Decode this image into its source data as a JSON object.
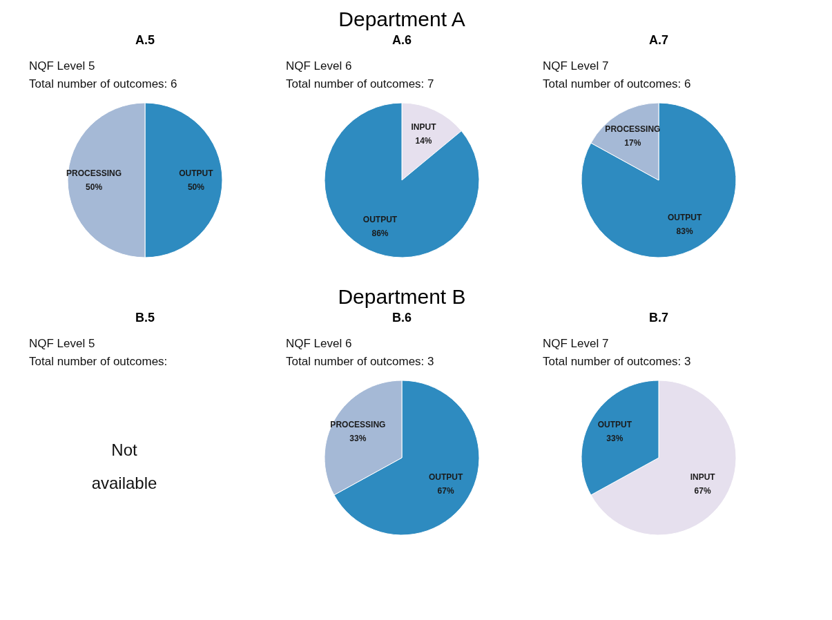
{
  "chart_data": [
    {
      "type": "pie",
      "title": "A.5",
      "annotations": [
        "Department A",
        "NQF Level 5",
        "Total number of outcomes: 6"
      ],
      "categories": [
        "OUTPUT",
        "PROCESSING"
      ],
      "values": [
        50,
        50
      ],
      "value_labels": [
        "50%",
        "50%"
      ],
      "colors": [
        "#2e8bc0",
        "#a5b9d6"
      ]
    },
    {
      "type": "pie",
      "title": "A.6",
      "annotations": [
        "NQF Level 6",
        "Total number of outcomes: 7"
      ],
      "categories": [
        "INPUT",
        "OUTPUT"
      ],
      "values": [
        14,
        86
      ],
      "value_labels": [
        "14%",
        "86%"
      ],
      "colors": [
        "#e6e0ee",
        "#2e8bc0"
      ]
    },
    {
      "type": "pie",
      "title": "A.7",
      "annotations": [
        "NQF Level 7",
        "Total number of outcomes: 6"
      ],
      "categories": [
        "OUTPUT",
        "PROCESSING"
      ],
      "values": [
        83,
        17
      ],
      "value_labels": [
        "83%",
        "17%"
      ],
      "colors": [
        "#2e8bc0",
        "#a5b9d6"
      ]
    },
    {
      "type": "other",
      "title": "B.5",
      "annotations": [
        "Department B",
        "NQF Level 5",
        "Total number of outcomes:",
        "Not available"
      ]
    },
    {
      "type": "pie",
      "title": "B.6",
      "annotations": [
        "NQF Level 6",
        "Total number of outcomes: 3"
      ],
      "categories": [
        "OUTPUT",
        "PROCESSING"
      ],
      "values": [
        67,
        33
      ],
      "value_labels": [
        "67%",
        "33%"
      ],
      "colors": [
        "#2e8bc0",
        "#a5b9d6"
      ]
    },
    {
      "type": "pie",
      "title": "B.7",
      "annotations": [
        "NQF Level 7",
        "Total number of outcomes: 3"
      ],
      "categories": [
        "INPUT",
        "OUTPUT"
      ],
      "values": [
        67,
        33
      ],
      "value_labels": [
        "67%",
        "33%"
      ],
      "colors": [
        "#e6e0ee",
        "#2e8bc0"
      ]
    }
  ]
}
